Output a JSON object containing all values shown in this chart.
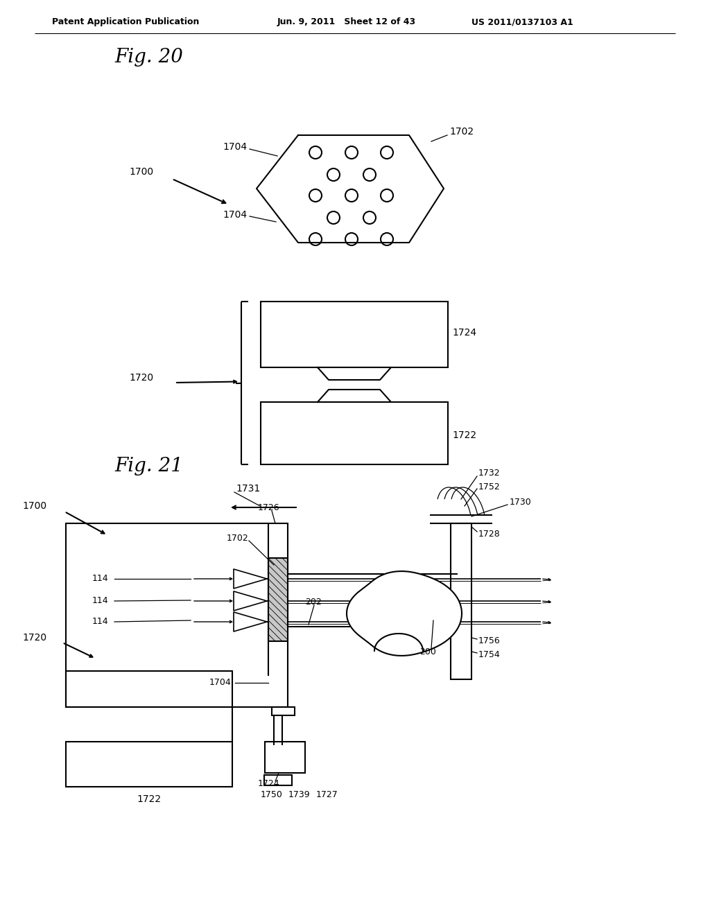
{
  "bg_color": "#ffffff",
  "header_left": "Patent Application Publication",
  "header_mid": "Jun. 9, 2011   Sheet 12 of 43",
  "header_right": "US 2011/0137103 A1",
  "fig20_title": "Fig. 20",
  "fig21_title": "Fig. 21",
  "lc": "#000000",
  "lw": 1.5,
  "lw_thin": 1.0,
  "lw_thick": 2.0
}
